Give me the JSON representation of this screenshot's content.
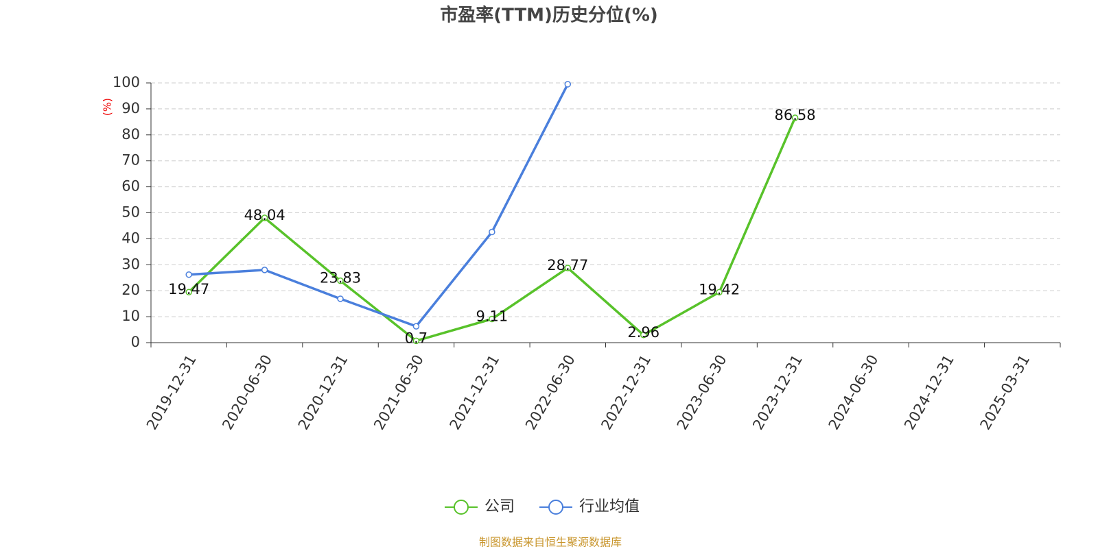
{
  "chart_data": {
    "type": "line",
    "title": "市盈率(TTM)历史分位(%)",
    "y_label": "(%)",
    "categories": [
      "2019-12-31",
      "2020-06-30",
      "2020-12-31",
      "2021-06-30",
      "2021-12-31",
      "2022-06-30",
      "2022-12-31",
      "2023-06-30",
      "2023-12-31",
      "2024-06-30",
      "2024-12-31",
      "2025-03-31"
    ],
    "series": [
      {
        "name": "公司",
        "color": "#58c22a",
        "values": [
          19.47,
          48.04,
          23.83,
          0.7,
          9.11,
          28.77,
          2.96,
          19.42,
          86.58,
          null,
          null,
          null
        ]
      },
      {
        "name": "行业均值",
        "color": "#4a7fdc",
        "values": [
          26.2,
          28.0,
          16.9,
          6.3,
          42.6,
          99.5,
          null,
          null,
          null,
          null,
          null,
          null
        ]
      }
    ],
    "ylim": [
      0,
      100
    ],
    "yticks": [
      0,
      10,
      20,
      30,
      40,
      50,
      60,
      70,
      80,
      90,
      100
    ],
    "grid": true,
    "source": "制图数据来自恒生聚源数据库"
  }
}
